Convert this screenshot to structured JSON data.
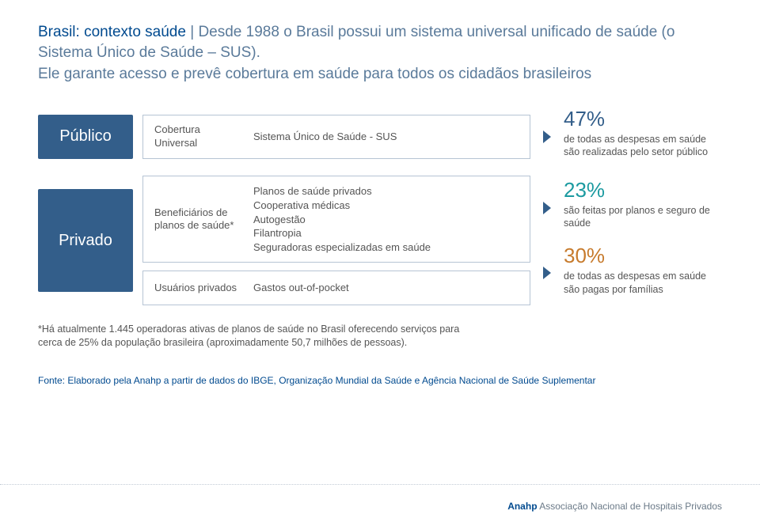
{
  "title": {
    "lead": "Brasil: contexto saúde",
    "line1_rest": " | Desde 1988 o Brasil possui um sistema universal unificado de saúde (o Sistema Único de Saúde – SUS).",
    "line2": "Ele garante acesso e prevê cobertura em saúde para todos os cidadãos brasileiros"
  },
  "colors": {
    "badge_bg": "#335e8a",
    "card_border": "#b6c4d4",
    "arrow": "#335e8a",
    "pct_blue": "#335e8a",
    "pct_teal": "#1b9aa0",
    "pct_orange": "#c77b2d",
    "text_muted": "#555555",
    "title_blue": "#004a8f",
    "title_gray": "#5a7a9a"
  },
  "publico": {
    "badge": "Público",
    "left": "Cobertura Universal",
    "right": "Sistema Único de Saúde - SUS",
    "stat_pct": "47%",
    "stat_text": "de todas as despesas em saúde são realizadas pelo setor público"
  },
  "privado": {
    "badge": "Privado",
    "card1_left": "Beneficiários de planos de saúde*",
    "card1_right": "Planos de saúde privados\nCooperativa médicas\nAutogestão\nFilantropia\nSeguradoras especializadas em saúde",
    "card2_left": "Usuários privados",
    "card2_right": "Gastos out-of-pocket",
    "stat1_pct": "23%",
    "stat1_text": "são feitas por planos e seguro de saúde",
    "stat2_pct": "30%",
    "stat2_text": "de todas as despesas em saúde são pagas por famílias"
  },
  "footnote": "*Há atualmente 1.445 operadoras ativas de planos de saúde no Brasil oferecendo serviços para cerca de 25% da população brasileira (aproximadamente 50,7 milhões de pessoas).",
  "source": "Fonte: Elaborado pela Anahp a partir de dados do IBGE, Organização Mundial da Saúde e Agência Nacional de Saúde Suplementar",
  "footer": {
    "bold": "Anahp",
    "rest": " Associação Nacional de Hospitais Privados"
  }
}
